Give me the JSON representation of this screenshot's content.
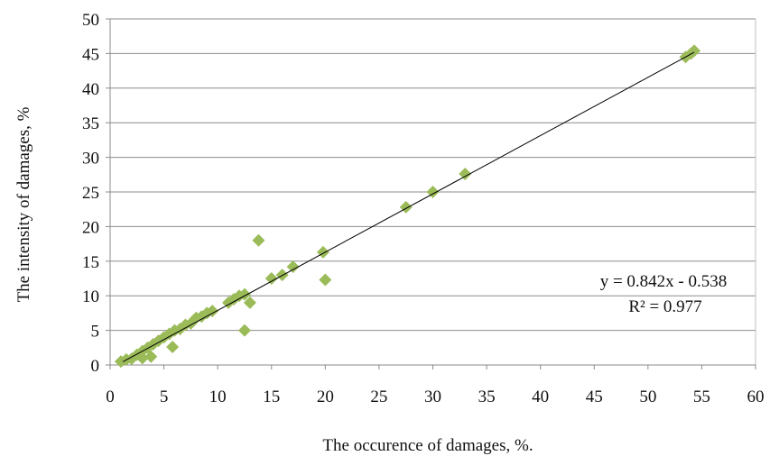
{
  "chart_data": {
    "type": "scatter",
    "xlabel": "The occurence of damages, %.",
    "ylabel": "The intensity of damages, %",
    "xlim": [
      0,
      60
    ],
    "ylim": [
      0,
      50
    ],
    "x_ticks": [
      0,
      5,
      10,
      15,
      20,
      25,
      30,
      35,
      40,
      45,
      50,
      55,
      60
    ],
    "y_ticks": [
      0,
      5,
      10,
      15,
      20,
      25,
      30,
      35,
      40,
      45,
      50
    ],
    "grid": "horizontal",
    "marker_color": "#9bbb59",
    "trendline": {
      "slope": 0.842,
      "intercept": -0.538,
      "equation": "y = 0.842x - 0.538",
      "r2": "R² = 0.977",
      "color": "#000000"
    },
    "points": [
      {
        "x": 1.0,
        "y": 0.5
      },
      {
        "x": 1.5,
        "y": 0.8
      },
      {
        "x": 2.0,
        "y": 0.9
      },
      {
        "x": 2.5,
        "y": 1.5
      },
      {
        "x": 3.0,
        "y": 2.0
      },
      {
        "x": 3.0,
        "y": 1.0
      },
      {
        "x": 3.5,
        "y": 2.5
      },
      {
        "x": 3.8,
        "y": 1.2
      },
      {
        "x": 4.0,
        "y": 3.0
      },
      {
        "x": 4.5,
        "y": 3.5
      },
      {
        "x": 5.0,
        "y": 4.0
      },
      {
        "x": 5.5,
        "y": 4.5
      },
      {
        "x": 5.8,
        "y": 2.6
      },
      {
        "x": 6.0,
        "y": 5.0
      },
      {
        "x": 6.5,
        "y": 5.2
      },
      {
        "x": 7.0,
        "y": 5.8
      },
      {
        "x": 7.5,
        "y": 6.0
      },
      {
        "x": 8.0,
        "y": 6.8
      },
      {
        "x": 8.5,
        "y": 7.0
      },
      {
        "x": 9.0,
        "y": 7.5
      },
      {
        "x": 9.5,
        "y": 7.8
      },
      {
        "x": 11.0,
        "y": 9.0
      },
      {
        "x": 11.5,
        "y": 9.5
      },
      {
        "x": 12.0,
        "y": 10.0
      },
      {
        "x": 12.5,
        "y": 10.2
      },
      {
        "x": 12.5,
        "y": 5.0
      },
      {
        "x": 13.0,
        "y": 9.0
      },
      {
        "x": 13.8,
        "y": 18.0
      },
      {
        "x": 15.0,
        "y": 12.5
      },
      {
        "x": 16.0,
        "y": 13.0
      },
      {
        "x": 17.0,
        "y": 14.2
      },
      {
        "x": 19.8,
        "y": 16.3
      },
      {
        "x": 20.0,
        "y": 12.3
      },
      {
        "x": 27.5,
        "y": 22.8
      },
      {
        "x": 30.0,
        "y": 25.0
      },
      {
        "x": 33.0,
        "y": 27.6
      },
      {
        "x": 53.5,
        "y": 44.5
      },
      {
        "x": 54.0,
        "y": 45.0
      },
      {
        "x": 54.3,
        "y": 45.4
      }
    ]
  }
}
